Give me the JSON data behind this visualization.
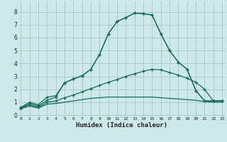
{
  "background_color": "#cce8e8",
  "grid_color": "#aacccc",
  "line_color": "#1a6b5a",
  "xlabel": "Humidex (Indice chaleur)",
  "x_ticks": [
    0,
    1,
    2,
    3,
    4,
    5,
    6,
    7,
    8,
    9,
    10,
    11,
    12,
    13,
    14,
    15,
    16,
    17,
    18,
    19,
    20,
    21,
    22,
    23
  ],
  "y_ticks": [
    0,
    1,
    2,
    3,
    4,
    5,
    6,
    7,
    8
  ],
  "xlim": [
    -0.3,
    23.3
  ],
  "ylim": [
    -0.1,
    8.8
  ],
  "line1_x": [
    0,
    1,
    2,
    3,
    4,
    5,
    6,
    7,
    8,
    9,
    10,
    11,
    12,
    13,
    14,
    15,
    16,
    17,
    18,
    19,
    20,
    21,
    22,
    23
  ],
  "line1_y": [
    0.6,
    1.0,
    0.8,
    1.4,
    1.5,
    2.5,
    2.8,
    3.05,
    3.55,
    4.7,
    6.3,
    7.25,
    7.55,
    7.9,
    7.85,
    7.75,
    6.3,
    5.0,
    4.1,
    3.55,
    1.9,
    1.1,
    1.1,
    1.1
  ],
  "line2_x": [
    0,
    1,
    2,
    3,
    4,
    5,
    6,
    7,
    8,
    9,
    10,
    11,
    12,
    13,
    14,
    15,
    16,
    17,
    18,
    19,
    20,
    21,
    22,
    23
  ],
  "line2_y": [
    0.55,
    0.9,
    0.7,
    1.15,
    1.4,
    2.5,
    2.8,
    3.05,
    3.55,
    4.7,
    6.3,
    7.25,
    7.55,
    7.9,
    7.85,
    7.75,
    6.3,
    5.0,
    4.1,
    3.55,
    1.9,
    1.1,
    1.1,
    1.1
  ],
  "line3_x": [
    0,
    1,
    2,
    3,
    4,
    5,
    6,
    7,
    8,
    9,
    10,
    11,
    12,
    13,
    14,
    15,
    16,
    17,
    18,
    19,
    20,
    21,
    22,
    23
  ],
  "line3_y": [
    0.5,
    0.8,
    0.6,
    1.0,
    1.1,
    1.35,
    1.55,
    1.8,
    2.05,
    2.3,
    2.55,
    2.75,
    3.0,
    3.2,
    3.4,
    3.55,
    3.5,
    3.3,
    3.1,
    2.85,
    2.55,
    2.0,
    1.1,
    1.1
  ],
  "line4_x": [
    0,
    1,
    2,
    3,
    4,
    5,
    6,
    7,
    8,
    9,
    10,
    11,
    12,
    13,
    14,
    15,
    16,
    17,
    18,
    19,
    20,
    21,
    22,
    23
  ],
  "line4_y": [
    0.5,
    0.7,
    0.55,
    0.85,
    0.9,
    1.0,
    1.1,
    1.2,
    1.3,
    1.35,
    1.4,
    1.4,
    1.4,
    1.4,
    1.4,
    1.4,
    1.35,
    1.3,
    1.25,
    1.2,
    1.15,
    1.05,
    1.0,
    1.0
  ]
}
